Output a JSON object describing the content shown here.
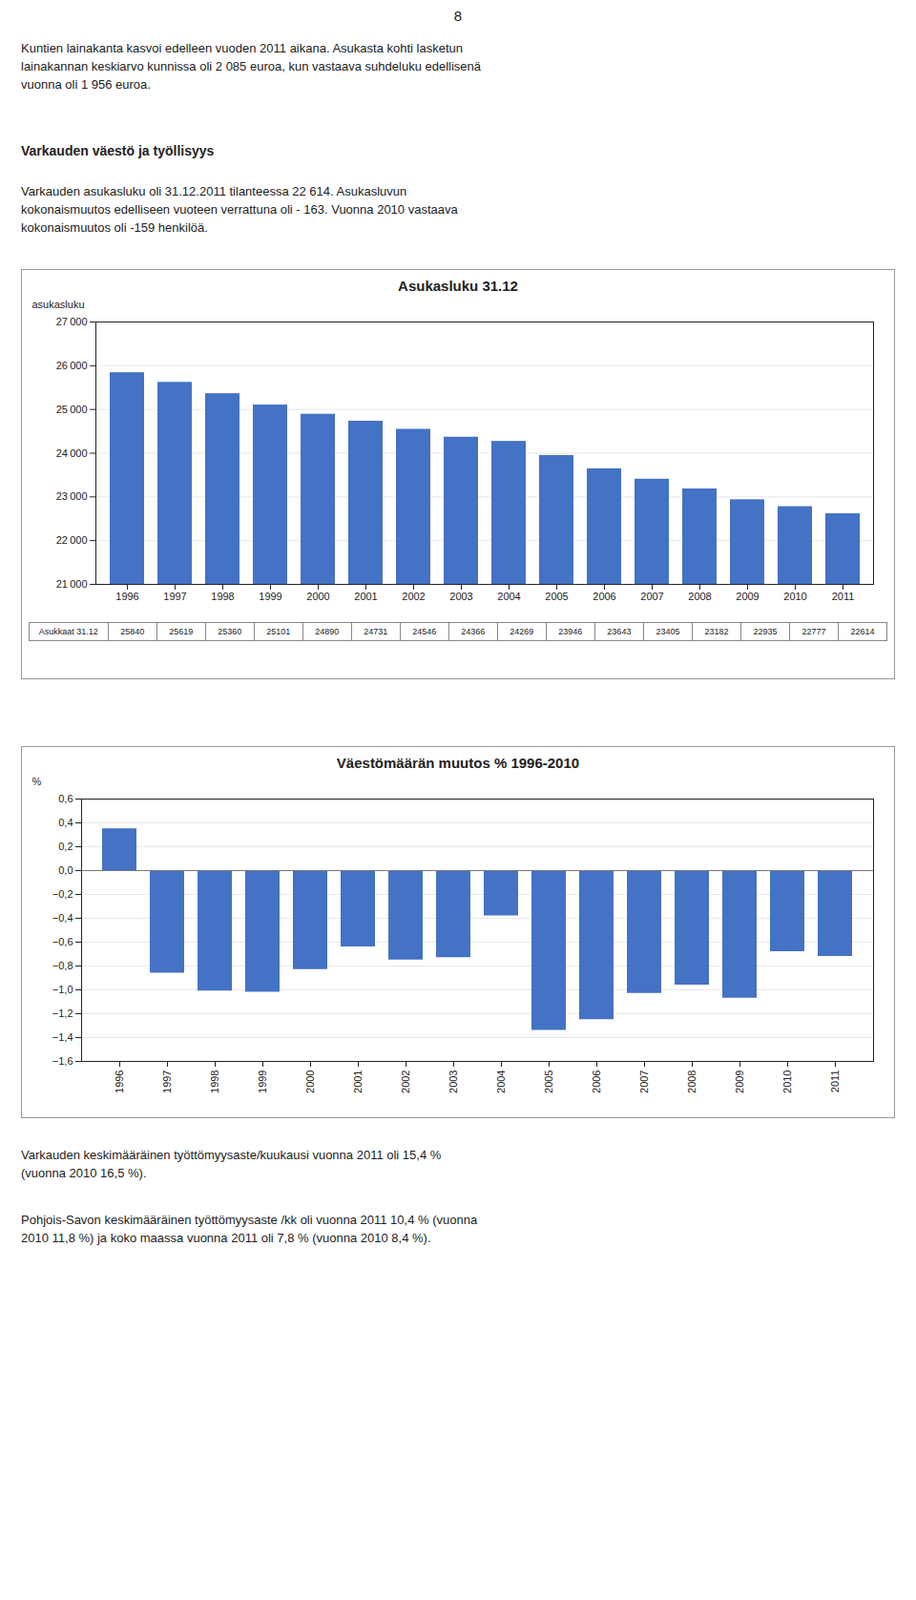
{
  "page_number": "8",
  "section_title": "Varkauden väestö ja työllisyys",
  "paragraphs": [
    [
      "Kuntien lainakanta kasvoi edelleen vuoden 2011 aikana. Asukasta kohti lasketun",
      "lainakannan keskiarvo kunnissa oli 2 085 euroa, kun vastaava suhdeluku edellisenä",
      "vuonna oli 1 956 euroa."
    ],
    [
      "Varkauden asukasluku oli 31.12.2011 tilanteessa 22 614.  Asukasluvun",
      "kokonaismuutos edelliseen vuoteen verrattuna oli - 163. Vuonna 2010 vastaava",
      "kokonaismuutos oli -159 henkilöä."
    ],
    [
      "Varkauden keskimääräinen työttömyysaste/kuukausi vuonna 2011 oli 15,4 %",
      "(vuonna 2010 16,5 %)."
    ],
    [
      "Pohjois-Savon keskimääräinen työttömyysaste /kk oli vuonna 2011 10,4 % (vuonna",
      "2010 11,8 %) ja koko maassa vuonna 2011 oli 7,8 % (vuonna 2010 8,4 %)."
    ]
  ],
  "chart_data": [
    {
      "type": "bar",
      "title": "Asukasluku 31.12",
      "ylabel": "asukasluku",
      "categories": [
        "1996",
        "1997",
        "1998",
        "1999",
        "2000",
        "2001",
        "2002",
        "2003",
        "2004",
        "2005",
        "2006",
        "2007",
        "2008",
        "2009",
        "2010",
        "2011"
      ],
      "values": [
        25840,
        25619,
        25360,
        25101,
        24890,
        24731,
        24546,
        24366,
        24269,
        23946,
        23643,
        23405,
        23182,
        22935,
        22777,
        22614
      ],
      "color": "#4472C4",
      "ylim": [
        21000,
        27000
      ],
      "yticks": [
        {
          "value": 21000,
          "label": "21 000"
        },
        {
          "value": 22000,
          "label": "22 000"
        },
        {
          "value": 23000,
          "label": "23 000"
        },
        {
          "value": 24000,
          "label": "24 000"
        },
        {
          "value": 25000,
          "label": "25 000"
        },
        {
          "value": 26000,
          "label": "26 000"
        },
        {
          "value": 27000,
          "label": "27 000"
        }
      ],
      "grid": true,
      "table_row_label": "Asukkaat 31.12"
    },
    {
      "type": "bar",
      "title": "Väestömäärän muutos % 1996-2010",
      "ylabel": "%",
      "categories": [
        "1996",
        "1997",
        "1998",
        "1999",
        "2000",
        "2001",
        "2002",
        "2003",
        "2004",
        "2005",
        "2006",
        "2007",
        "2008",
        "2009",
        "2010",
        "2011"
      ],
      "values": [
        0.35,
        -0.86,
        -1.01,
        -1.02,
        -0.83,
        -0.64,
        -0.75,
        -0.73,
        -0.38,
        -1.34,
        -1.25,
        -1.03,
        -0.96,
        -1.07,
        -0.68,
        -0.72
      ],
      "color": "#4472C4",
      "ylim": [
        -1.6,
        0.6
      ],
      "yticks": [
        {
          "value": -1.6,
          "label": "−1,6"
        },
        {
          "value": -1.4,
          "label": "−1,4"
        },
        {
          "value": -1.2,
          "label": "−1,2"
        },
        {
          "value": -1.0,
          "label": "−1,0"
        },
        {
          "value": -0.8,
          "label": "−0,8"
        },
        {
          "value": -0.6,
          "label": "−0,6"
        },
        {
          "value": -0.4,
          "label": "−0,4"
        },
        {
          "value": -0.2,
          "label": "−0,2"
        },
        {
          "value": 0.0,
          "label": "0,0"
        },
        {
          "value": 0.2,
          "label": "0,2"
        },
        {
          "value": 0.4,
          "label": "0,4"
        },
        {
          "value": 0.6,
          "label": "0,6"
        }
      ],
      "grid": true
    }
  ]
}
